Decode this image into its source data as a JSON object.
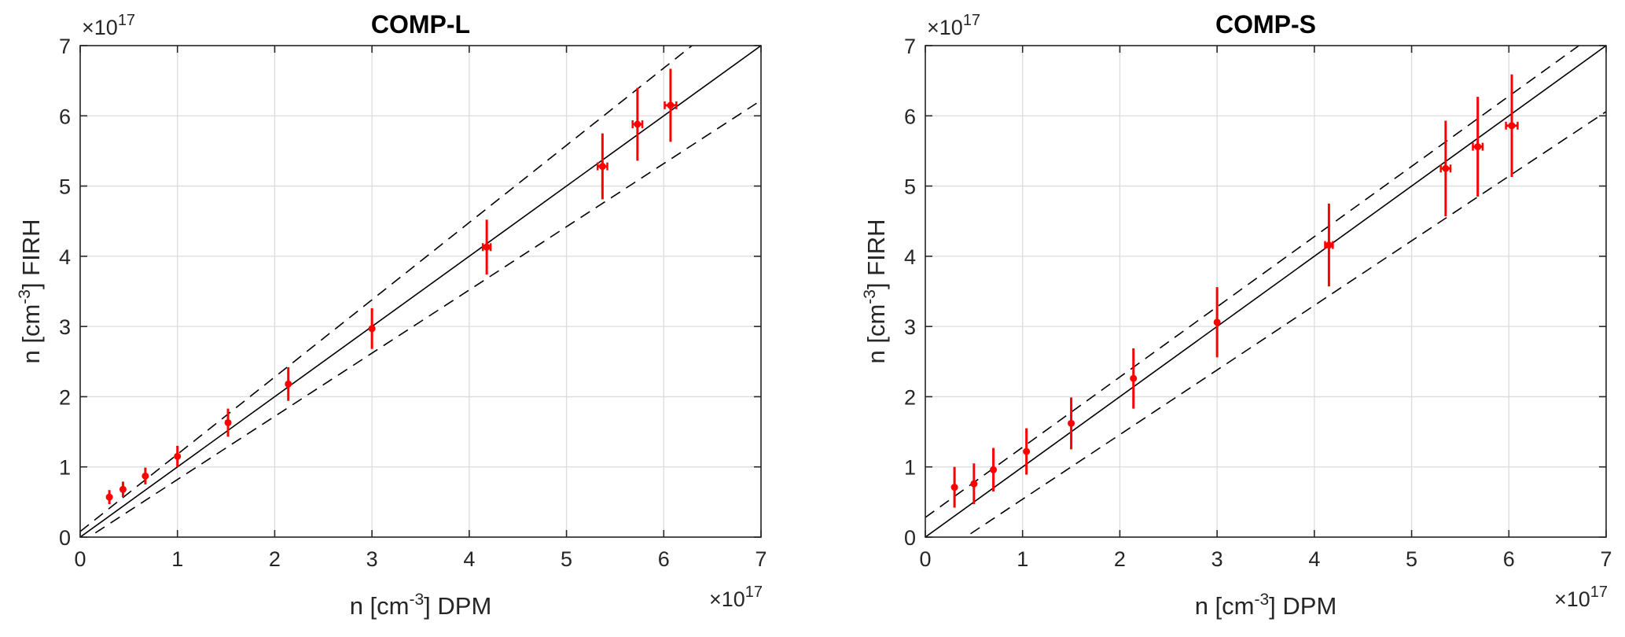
{
  "chart_data": [
    {
      "type": "scatter",
      "title": "COMP-L",
      "xlabel": {
        "pre": "n [cm",
        "sup": "-3",
        "post": "] DPM"
      },
      "ylabel": {
        "pre": "n [cm",
        "sup": "-3",
        "post": "] FIRH"
      },
      "x_multiplier": {
        "base": "×10",
        "exp": "17"
      },
      "y_multiplier": {
        "base": "×10",
        "exp": "17"
      },
      "xlim": [
        0,
        7
      ],
      "ylim": [
        0,
        7
      ],
      "xticks": [
        "0",
        "1",
        "2",
        "3",
        "4",
        "5",
        "6",
        "7"
      ],
      "yticks": [
        "0",
        "1",
        "2",
        "3",
        "4",
        "5",
        "6",
        "7"
      ],
      "grid": true,
      "reference_lines": [
        {
          "kind": "solid",
          "slope": 1.0,
          "intercept": 0.0
        },
        {
          "kind": "dashed",
          "slope": 1.1,
          "intercept": 0.08
        },
        {
          "kind": "dashed",
          "slope": 0.9,
          "intercept": -0.08
        }
      ],
      "marker_color": "#ff0000",
      "points": [
        {
          "x": 0.3,
          "y": 0.57,
          "y_err": 0.1,
          "x_err": 0.0
        },
        {
          "x": 0.44,
          "y": 0.68,
          "y_err": 0.11,
          "x_err": 0.0
        },
        {
          "x": 0.67,
          "y": 0.87,
          "y_err": 0.12,
          "x_err": 0.0
        },
        {
          "x": 1.0,
          "y": 1.15,
          "y_err": 0.15,
          "x_err": 0.0
        },
        {
          "x": 1.52,
          "y": 1.63,
          "y_err": 0.2,
          "x_err": 0.0
        },
        {
          "x": 2.14,
          "y": 2.18,
          "y_err": 0.24,
          "x_err": 0.0
        },
        {
          "x": 3.0,
          "y": 2.97,
          "y_err": 0.29,
          "x_err": 0.0
        },
        {
          "x": 4.18,
          "y": 4.13,
          "y_err": 0.39,
          "x_err": 0.04
        },
        {
          "x": 5.37,
          "y": 5.28,
          "y_err": 0.47,
          "x_err": 0.05
        },
        {
          "x": 5.73,
          "y": 5.88,
          "y_err": 0.52,
          "x_err": 0.05
        },
        {
          "x": 6.07,
          "y": 6.15,
          "y_err": 0.52,
          "x_err": 0.06
        }
      ]
    },
    {
      "type": "scatter",
      "title": "COMP-S",
      "xlabel": {
        "pre": "n [cm",
        "sup": "-3",
        "post": "] DPM"
      },
      "ylabel": {
        "pre": "n [cm",
        "sup": "-3",
        "post": "] FIRH"
      },
      "x_multiplier": {
        "base": "×10",
        "exp": "17"
      },
      "y_multiplier": {
        "base": "×10",
        "exp": "17"
      },
      "xlim": [
        0,
        7
      ],
      "ylim": [
        0,
        7
      ],
      "xticks": [
        "0",
        "1",
        "2",
        "3",
        "4",
        "5",
        "6",
        "7"
      ],
      "yticks": [
        "0",
        "1",
        "2",
        "3",
        "4",
        "5",
        "6",
        "7"
      ],
      "grid": true,
      "reference_lines": [
        {
          "kind": "solid",
          "slope": 1.0,
          "intercept": 0.0
        },
        {
          "kind": "dashed",
          "slope": 1.0,
          "intercept": 0.28
        },
        {
          "kind": "dashed",
          "slope": 0.92,
          "intercept": -0.38
        }
      ],
      "marker_color": "#ff0000",
      "points": [
        {
          "x": 0.3,
          "y": 0.71,
          "y_err": 0.29,
          "x_err": 0.0
        },
        {
          "x": 0.5,
          "y": 0.76,
          "y_err": 0.29,
          "x_err": 0.0
        },
        {
          "x": 0.7,
          "y": 0.96,
          "y_err": 0.31,
          "x_err": 0.0
        },
        {
          "x": 1.04,
          "y": 1.22,
          "y_err": 0.33,
          "x_err": 0.0
        },
        {
          "x": 1.5,
          "y": 1.62,
          "y_err": 0.37,
          "x_err": 0.0
        },
        {
          "x": 2.14,
          "y": 2.26,
          "y_err": 0.43,
          "x_err": 0.0
        },
        {
          "x": 3.0,
          "y": 3.06,
          "y_err": 0.5,
          "x_err": 0.0
        },
        {
          "x": 4.15,
          "y": 4.16,
          "y_err": 0.59,
          "x_err": 0.04
        },
        {
          "x": 5.35,
          "y": 5.25,
          "y_err": 0.68,
          "x_err": 0.05
        },
        {
          "x": 5.68,
          "y": 5.56,
          "y_err": 0.71,
          "x_err": 0.05
        },
        {
          "x": 6.03,
          "y": 5.86,
          "y_err": 0.73,
          "x_err": 0.06
        }
      ]
    }
  ]
}
